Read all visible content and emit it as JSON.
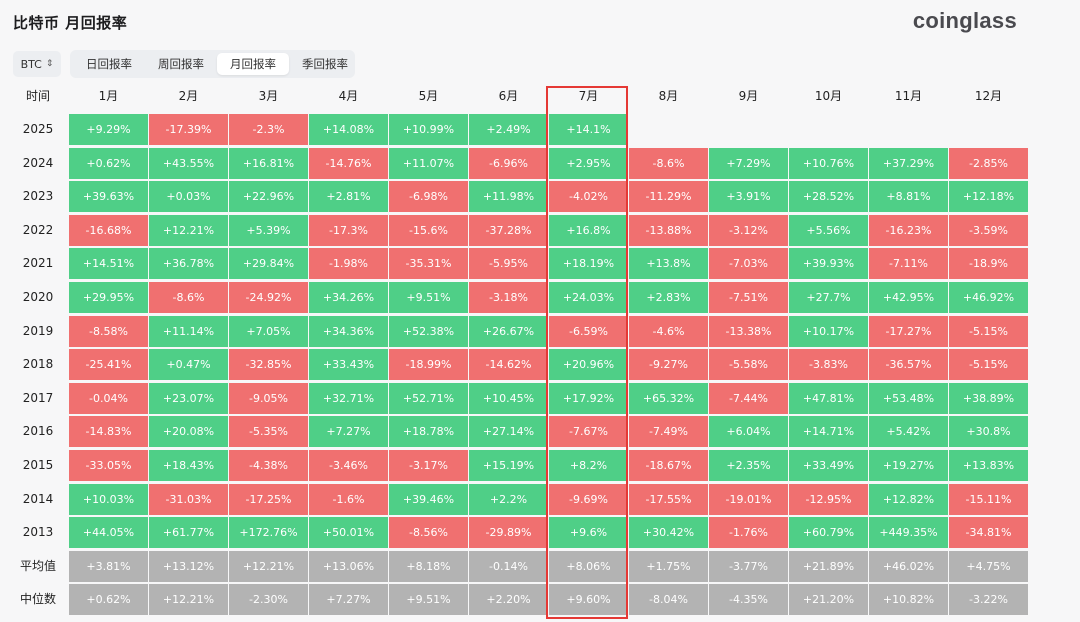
{
  "header": {
    "title": "比特币 月回报率",
    "brand": "coinglass"
  },
  "coin_select": {
    "value": "BTC"
  },
  "tabs": [
    {
      "label": "日回报率",
      "active": false
    },
    {
      "label": "周回报率",
      "active": false
    },
    {
      "label": "月回报率",
      "active": true
    },
    {
      "label": "季回报率",
      "active": false
    }
  ],
  "table": {
    "corner": "时间",
    "columns": [
      "1月",
      "2月",
      "3月",
      "4月",
      "5月",
      "6月",
      "7月",
      "8月",
      "9月",
      "10月",
      "11月",
      "12月"
    ],
    "rows": [
      {
        "label": "2025",
        "cells": [
          "+9.29%",
          "-17.39%",
          "-2.3%",
          "+14.08%",
          "+10.99%",
          "+2.49%",
          "+14.1%",
          "",
          "",
          "",
          "",
          ""
        ]
      },
      {
        "label": "2024",
        "cells": [
          "+0.62%",
          "+43.55%",
          "+16.81%",
          "-14.76%",
          "+11.07%",
          "-6.96%",
          "+2.95%",
          "-8.6%",
          "+7.29%",
          "+10.76%",
          "+37.29%",
          "-2.85%"
        ]
      },
      {
        "label": "2023",
        "cells": [
          "+39.63%",
          "+0.03%",
          "+22.96%",
          "+2.81%",
          "-6.98%",
          "+11.98%",
          "-4.02%",
          "-11.29%",
          "+3.91%",
          "+28.52%",
          "+8.81%",
          "+12.18%"
        ]
      },
      {
        "label": "2022",
        "cells": [
          "-16.68%",
          "+12.21%",
          "+5.39%",
          "-17.3%",
          "-15.6%",
          "-37.28%",
          "+16.8%",
          "-13.88%",
          "-3.12%",
          "+5.56%",
          "-16.23%",
          "-3.59%"
        ]
      },
      {
        "label": "2021",
        "cells": [
          "+14.51%",
          "+36.78%",
          "+29.84%",
          "-1.98%",
          "-35.31%",
          "-5.95%",
          "+18.19%",
          "+13.8%",
          "-7.03%",
          "+39.93%",
          "-7.11%",
          "-18.9%"
        ]
      },
      {
        "label": "2020",
        "cells": [
          "+29.95%",
          "-8.6%",
          "-24.92%",
          "+34.26%",
          "+9.51%",
          "-3.18%",
          "+24.03%",
          "+2.83%",
          "-7.51%",
          "+27.7%",
          "+42.95%",
          "+46.92%"
        ]
      },
      {
        "label": "2019",
        "cells": [
          "-8.58%",
          "+11.14%",
          "+7.05%",
          "+34.36%",
          "+52.38%",
          "+26.67%",
          "-6.59%",
          "-4.6%",
          "-13.38%",
          "+10.17%",
          "-17.27%",
          "-5.15%"
        ]
      },
      {
        "label": "2018",
        "cells": [
          "-25.41%",
          "+0.47%",
          "-32.85%",
          "+33.43%",
          "-18.99%",
          "-14.62%",
          "+20.96%",
          "-9.27%",
          "-5.58%",
          "-3.83%",
          "-36.57%",
          "-5.15%"
        ]
      },
      {
        "label": "2017",
        "cells": [
          "-0.04%",
          "+23.07%",
          "-9.05%",
          "+32.71%",
          "+52.71%",
          "+10.45%",
          "+17.92%",
          "+65.32%",
          "-7.44%",
          "+47.81%",
          "+53.48%",
          "+38.89%"
        ]
      },
      {
        "label": "2016",
        "cells": [
          "-14.83%",
          "+20.08%",
          "-5.35%",
          "+7.27%",
          "+18.78%",
          "+27.14%",
          "-7.67%",
          "-7.49%",
          "+6.04%",
          "+14.71%",
          "+5.42%",
          "+30.8%"
        ]
      },
      {
        "label": "2015",
        "cells": [
          "-33.05%",
          "+18.43%",
          "-4.38%",
          "-3.46%",
          "-3.17%",
          "+15.19%",
          "+8.2%",
          "-18.67%",
          "+2.35%",
          "+33.49%",
          "+19.27%",
          "+13.83%"
        ]
      },
      {
        "label": "2014",
        "cells": [
          "+10.03%",
          "-31.03%",
          "-17.25%",
          "-1.6%",
          "+39.46%",
          "+2.2%",
          "-9.69%",
          "-17.55%",
          "-19.01%",
          "-12.95%",
          "+12.82%",
          "-15.11%"
        ]
      },
      {
        "label": "2013",
        "cells": [
          "+44.05%",
          "+61.77%",
          "+172.76%",
          "+50.01%",
          "-8.56%",
          "-29.89%",
          "+9.6%",
          "+30.42%",
          "-1.76%",
          "+60.79%",
          "+449.35%",
          "-34.81%"
        ]
      }
    ],
    "stats": [
      {
        "label": "平均值",
        "cells": [
          "+3.81%",
          "+13.12%",
          "+12.21%",
          "+13.06%",
          "+8.18%",
          "-0.14%",
          "+8.06%",
          "+1.75%",
          "-3.77%",
          "+21.89%",
          "+46.02%",
          "+4.75%"
        ]
      },
      {
        "label": "中位数",
        "cells": [
          "+0.62%",
          "+12.21%",
          "-2.30%",
          "+7.27%",
          "+9.51%",
          "+2.20%",
          "+9.60%",
          "-8.04%",
          "-4.35%",
          "+21.20%",
          "+10.82%",
          "-3.22%"
        ]
      }
    ],
    "highlighted_column": "7月"
  },
  "colors": {
    "positive": "#4fcf87",
    "negative": "#f07070",
    "stat": "#b3b3b3",
    "highlight_border": "#e53935"
  }
}
